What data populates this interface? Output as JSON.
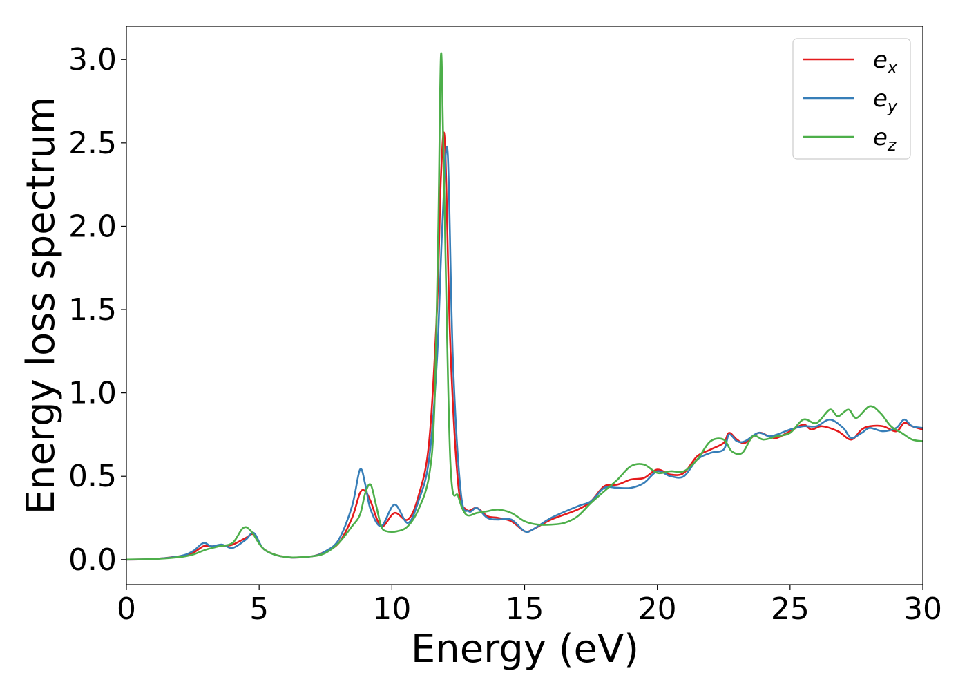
{
  "chart_data": {
    "type": "line",
    "title": "",
    "xlabel": "Energy (eV)",
    "ylabel": "Energy loss spectrum",
    "xlim": [
      0,
      30
    ],
    "ylim": [
      -0.15,
      3.2
    ],
    "xticks": [
      "0",
      "5",
      "10",
      "15",
      "20",
      "25",
      "30"
    ],
    "yticks": [
      "0.0",
      "0.5",
      "1.0",
      "1.5",
      "2.0",
      "2.5",
      "3.0"
    ],
    "grid": false,
    "legend": "top-right",
    "series": [
      {
        "name": "e_x",
        "label_main": "e",
        "label_sub": "x",
        "color": "#e41a1c",
        "x": [
          0,
          1,
          2,
          2.5,
          2.9,
          3.2,
          3.6,
          4,
          4.5,
          4.8,
          5.2,
          6,
          7,
          7.5,
          8,
          8.5,
          8.8,
          9,
          9.2,
          9.6,
          10.1,
          10.6,
          11,
          11.4,
          11.7,
          11.85,
          12,
          12.2,
          12.5,
          12.8,
          13.2,
          13.6,
          14,
          14.5,
          15,
          15.3,
          16,
          17,
          17.5,
          18,
          18.5,
          19,
          19.5,
          20,
          20.5,
          21,
          21.5,
          22,
          22.5,
          22.7,
          23,
          23.3,
          23.8,
          24.2,
          24.5,
          25,
          25.5,
          25.8,
          26.2,
          26.8,
          27.3,
          27.7,
          28,
          28.5,
          29,
          29.3,
          29.6,
          30
        ],
        "y": [
          0,
          0.003,
          0.02,
          0.04,
          0.08,
          0.08,
          0.08,
          0.09,
          0.13,
          0.15,
          0.06,
          0.015,
          0.02,
          0.05,
          0.1,
          0.25,
          0.4,
          0.41,
          0.35,
          0.2,
          0.28,
          0.24,
          0.38,
          0.7,
          1.5,
          2.3,
          2.5,
          1.3,
          0.45,
          0.3,
          0.31,
          0.26,
          0.25,
          0.23,
          0.17,
          0.18,
          0.24,
          0.3,
          0.35,
          0.44,
          0.45,
          0.48,
          0.49,
          0.54,
          0.51,
          0.52,
          0.62,
          0.66,
          0.7,
          0.76,
          0.72,
          0.7,
          0.76,
          0.74,
          0.73,
          0.77,
          0.81,
          0.78,
          0.8,
          0.77,
          0.72,
          0.78,
          0.8,
          0.8,
          0.77,
          0.82,
          0.8,
          0.78
        ]
      },
      {
        "name": "e_y",
        "label_main": "e",
        "label_sub": "y",
        "color": "#377eb8",
        "x": [
          0,
          1,
          2,
          2.5,
          2.9,
          3.2,
          3.6,
          4,
          4.5,
          4.8,
          5.2,
          6,
          7,
          7.5,
          8,
          8.5,
          8.8,
          9,
          9.2,
          9.6,
          10.1,
          10.6,
          11,
          11.4,
          11.7,
          11.9,
          12.1,
          12.3,
          12.6,
          12.9,
          13.2,
          13.6,
          14,
          14.5,
          15,
          15.3,
          16,
          17,
          17.5,
          18,
          18.5,
          19,
          19.5,
          20,
          20.5,
          21,
          21.5,
          22,
          22.5,
          22.7,
          23,
          23.3,
          23.8,
          24.2,
          24.5,
          25,
          25.5,
          26,
          26.5,
          27,
          27.3,
          27.7,
          28,
          28.5,
          29,
          29.3,
          29.6,
          30
        ],
        "y": [
          0,
          0.003,
          0.02,
          0.05,
          0.1,
          0.08,
          0.09,
          0.07,
          0.12,
          0.16,
          0.06,
          0.015,
          0.02,
          0.05,
          0.12,
          0.32,
          0.54,
          0.45,
          0.3,
          0.2,
          0.33,
          0.22,
          0.35,
          0.6,
          1.2,
          2.0,
          2.45,
          1.2,
          0.4,
          0.29,
          0.31,
          0.25,
          0.24,
          0.24,
          0.17,
          0.18,
          0.25,
          0.32,
          0.35,
          0.43,
          0.43,
          0.43,
          0.46,
          0.53,
          0.5,
          0.5,
          0.6,
          0.64,
          0.66,
          0.75,
          0.71,
          0.71,
          0.76,
          0.74,
          0.75,
          0.78,
          0.8,
          0.8,
          0.84,
          0.79,
          0.73,
          0.76,
          0.79,
          0.77,
          0.79,
          0.84,
          0.8,
          0.79
        ]
      },
      {
        "name": "e_z",
        "label_main": "e",
        "label_sub": "z",
        "color": "#4daf4a",
        "x": [
          0,
          1,
          2,
          2.5,
          3,
          3.5,
          4,
          4.4,
          4.7,
          5.2,
          6,
          7,
          7.5,
          8,
          8.5,
          8.8,
          9,
          9.2,
          9.4,
          9.6,
          9.8,
          10.2,
          10.6,
          11,
          11.4,
          11.6,
          11.75,
          11.85,
          11.95,
          12.2,
          12.5,
          12.8,
          13.2,
          13.6,
          14,
          14.5,
          15,
          15.5,
          16,
          16.5,
          17,
          17.5,
          18,
          18.5,
          19,
          19.5,
          20,
          20.5,
          21,
          21.5,
          22,
          22.5,
          22.8,
          23.2,
          23.6,
          24,
          24.5,
          25,
          25.5,
          26,
          26.5,
          26.8,
          27.2,
          27.5,
          28,
          28.4,
          28.8,
          29.2,
          29.6,
          30
        ],
        "y": [
          0,
          0.003,
          0.015,
          0.03,
          0.06,
          0.08,
          0.1,
          0.19,
          0.17,
          0.06,
          0.015,
          0.02,
          0.04,
          0.1,
          0.2,
          0.27,
          0.4,
          0.45,
          0.33,
          0.2,
          0.17,
          0.17,
          0.2,
          0.3,
          0.5,
          0.9,
          2.0,
          3.03,
          2.4,
          0.6,
          0.38,
          0.27,
          0.28,
          0.29,
          0.3,
          0.28,
          0.23,
          0.21,
          0.21,
          0.22,
          0.26,
          0.34,
          0.41,
          0.48,
          0.56,
          0.57,
          0.52,
          0.53,
          0.53,
          0.6,
          0.71,
          0.72,
          0.65,
          0.64,
          0.74,
          0.72,
          0.74,
          0.76,
          0.84,
          0.82,
          0.9,
          0.86,
          0.9,
          0.85,
          0.92,
          0.88,
          0.8,
          0.76,
          0.72,
          0.71
        ]
      }
    ]
  }
}
